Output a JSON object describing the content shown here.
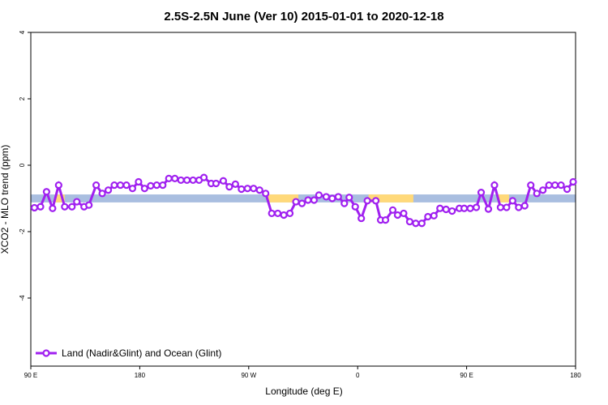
{
  "chart_data": {
    "type": "line",
    "title": "2.5S-2.5N June (Ver 10)   2015-01-01 to 2020-12-18",
    "x_label": "Longitude (deg E)",
    "y_label": "XCO2 - MLO trend (ppm)",
    "xlim": [
      90,
      540
    ],
    "ylim": [
      -6.05,
      4
    ],
    "xticks": [
      {
        "value": 90,
        "label": "90 E"
      },
      180,
      {
        "value": 270,
        "label": "90 W"
      },
      {
        "value": 360,
        "label": "0"
      },
      {
        "value": 450,
        "label": "90 E"
      },
      {
        "value": 540,
        "label": "180"
      }
    ],
    "yticks": [
      4,
      2,
      0,
      -2,
      -4
    ],
    "legend": "bottom-left",
    "band": {
      "ymin": -1.12,
      "ymax": -0.88,
      "color": "#a9bee0",
      "segments": [
        {
          "from": 110,
          "to": 118,
          "color": "#ffd97a"
        },
        {
          "from": 286,
          "to": 311,
          "color": "#ffd97a"
        },
        {
          "from": 369,
          "to": 406,
          "color": "#ffd97a"
        },
        {
          "from": 476,
          "to": 485,
          "color": "#ffd97a"
        }
      ]
    },
    "x": [
      93,
      98,
      103,
      108,
      113,
      118,
      124,
      128,
      134,
      138,
      144,
      149,
      154,
      159,
      164,
      169,
      174,
      179,
      184,
      189,
      194,
      199,
      204,
      209,
      214,
      219,
      224,
      229,
      233,
      239,
      243,
      249,
      254,
      259,
      264,
      269,
      274,
      279,
      284,
      289,
      294,
      299,
      304,
      309,
      314,
      319,
      324,
      328,
      334,
      339,
      344,
      349,
      353,
      358,
      363,
      368,
      375,
      379,
      383,
      389,
      393,
      398,
      403,
      408,
      413,
      418,
      423,
      428,
      433,
      438,
      444,
      448,
      453,
      458,
      462,
      468,
      473,
      478,
      483,
      488,
      493,
      498,
      503,
      508,
      513,
      518,
      523,
      528,
      533,
      538
    ],
    "series": [
      {
        "name": "Land (Nadir&Glint) and Ocean (Glint)",
        "color": "#a020f0",
        "values": [
          -1.28,
          -1.25,
          -0.8,
          -1.3,
          -0.6,
          -1.25,
          -1.25,
          -1.1,
          -1.25,
          -1.2,
          -0.6,
          -0.85,
          -0.75,
          -0.6,
          -0.6,
          -0.6,
          -0.7,
          -0.5,
          -0.7,
          -0.62,
          -0.6,
          -0.6,
          -0.4,
          -0.4,
          -0.45,
          -0.45,
          -0.45,
          -0.45,
          -0.37,
          -0.55,
          -0.55,
          -0.47,
          -0.65,
          -0.57,
          -0.72,
          -0.7,
          -0.7,
          -0.75,
          -0.85,
          -1.45,
          -1.45,
          -1.5,
          -1.45,
          -1.1,
          -1.15,
          -1.05,
          -1.05,
          -0.9,
          -0.95,
          -1.0,
          -0.95,
          -1.15,
          -0.97,
          -1.25,
          -1.6,
          -1.07,
          -1.07,
          -1.65,
          -1.65,
          -1.35,
          -1.5,
          -1.45,
          -1.7,
          -1.75,
          -1.75,
          -1.55,
          -1.52,
          -1.3,
          -1.33,
          -1.38,
          -1.3,
          -1.3,
          -1.3,
          -1.27,
          -0.82,
          -1.32,
          -0.6,
          -1.27,
          -1.27,
          -1.07,
          -1.27,
          -1.22,
          -0.6,
          -0.85,
          -0.75,
          -0.6,
          -0.6,
          -0.6,
          -0.72,
          -0.5
        ]
      }
    ]
  }
}
